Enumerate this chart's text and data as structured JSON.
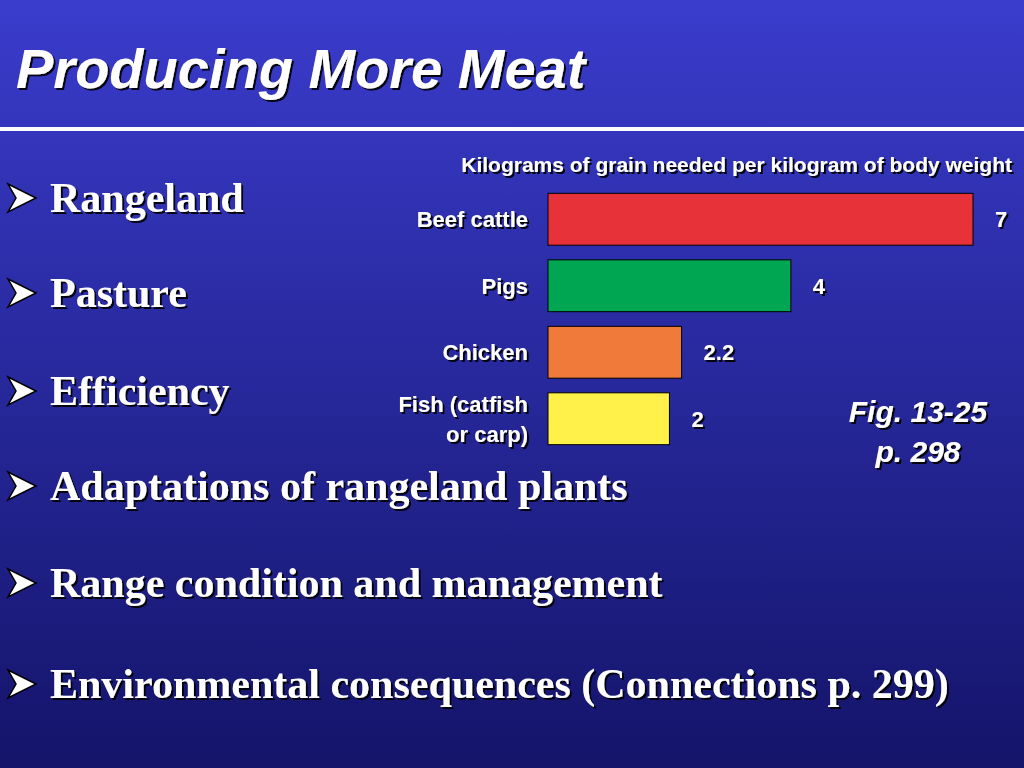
{
  "chart_data": {
    "type": "bar",
    "orientation": "horizontal",
    "data_labels": true,
    "title": "Producing More Meat",
    "subtitle": "Kilograms of grain needed per kilogram of body weight",
    "categories": [
      "Beef cattle",
      "Pigs",
      "Chicken",
      "Fish (catfish or carp)"
    ],
    "values": [
      7,
      4,
      2.2,
      2
    ],
    "colors": [
      "#e8323a",
      "#00a651",
      "#f07a3a",
      "#fff04a"
    ],
    "annotations": [
      "Rangeland",
      "Pasture",
      "Efficiency",
      "Adaptations of rangeland plants",
      "Range condition and management",
      "Environmental consequences (Connections p. 299)",
      "Fig. 13-25 p. 298"
    ]
  }
}
